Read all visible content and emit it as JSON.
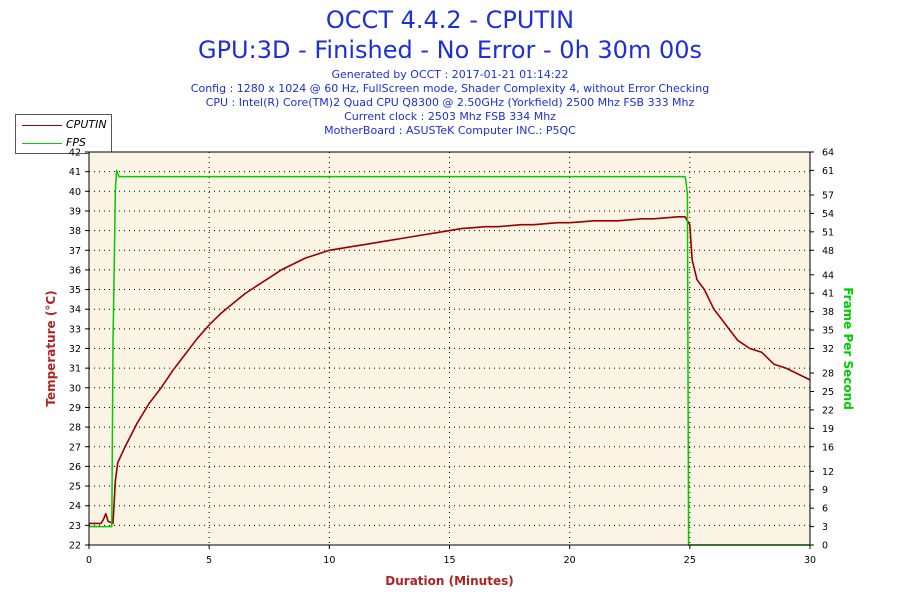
{
  "header": {
    "title": "OCCT 4.4.2 - CPUTIN",
    "subtitle": "GPU:3D - Finished - No Error - 0h 30m 00s",
    "info_lines": [
      "Generated by OCCT : 2017-01-21 01:14:22",
      "Config : 1280 x 1024 @ 60 Hz, FullScreen mode, Shader Complexity 4, without Error Checking",
      "CPU : Intel(R) Core(TM)2 Quad CPU Q8300 @ 2.50GHz (Yorkfield) 2500 Mhz FSB 333 Mhz",
      "Current clock : 2503 Mhz FSB 334 Mhz",
      "MotherBoard : ASUSTeK Computer INC.: P5QC"
    ]
  },
  "legend": {
    "items": [
      {
        "label": "CPUTIN",
        "color": "#990000"
      },
      {
        "label": "FPS",
        "color": "#00cc00"
      }
    ]
  },
  "chart_data": {
    "type": "line",
    "xlabel": "Duration (Minutes)",
    "ylabel": "Temperature (°C)",
    "y2label": "Frame Per Second",
    "xlim": [
      0,
      30
    ],
    "ylim": [
      22,
      42
    ],
    "y2lim": [
      0,
      64
    ],
    "x_ticks": [
      0,
      5,
      10,
      15,
      20,
      25,
      30
    ],
    "y_ticks": [
      22,
      23,
      24,
      25,
      26,
      27,
      28,
      29,
      30,
      31,
      32,
      33,
      34,
      35,
      36,
      37,
      38,
      39,
      40,
      41,
      42
    ],
    "y2_ticks": [
      0,
      3,
      6,
      9,
      12,
      16,
      19,
      22,
      25,
      28,
      32,
      35,
      38,
      41,
      44,
      48,
      51,
      54,
      57,
      61,
      64
    ],
    "grid": true,
    "plot_background": "#fbf3e4",
    "axis_label_colors": {
      "x": "#b22222",
      "y": "#b22222",
      "y2": "#00cc00"
    },
    "series": [
      {
        "name": "CPUTIN",
        "axis": "left",
        "color": "#990000",
        "x": [
          0,
          0.5,
          0.6,
          0.7,
          0.8,
          1.0,
          1.1,
          1.2,
          1.5,
          2.0,
          2.5,
          3.0,
          3.5,
          4.0,
          4.5,
          5.0,
          5.5,
          6.0,
          6.5,
          7.0,
          7.5,
          8.0,
          8.5,
          9.0,
          9.5,
          10.0,
          10.5,
          11.0,
          11.5,
          12.0,
          12.5,
          13.0,
          13.5,
          14.0,
          14.5,
          15.0,
          15.5,
          16.0,
          16.5,
          17.0,
          17.5,
          18.0,
          18.5,
          19.0,
          19.5,
          20.0,
          20.5,
          21.0,
          21.5,
          22.0,
          22.5,
          23.0,
          23.5,
          24.0,
          24.5,
          24.8,
          25.0,
          25.1,
          25.3,
          25.6,
          26.0,
          26.5,
          27.0,
          27.5,
          28.0,
          28.5,
          29.0,
          29.5,
          30.0
        ],
        "values": [
          23.1,
          23.1,
          23.3,
          23.6,
          23.2,
          23.1,
          25.3,
          26.2,
          27.0,
          28.2,
          29.2,
          30.0,
          30.9,
          31.7,
          32.5,
          33.2,
          33.8,
          34.3,
          34.8,
          35.2,
          35.6,
          36.0,
          36.3,
          36.6,
          36.8,
          37.0,
          37.1,
          37.2,
          37.3,
          37.4,
          37.5,
          37.6,
          37.7,
          37.8,
          37.9,
          38.0,
          38.1,
          38.15,
          38.2,
          38.2,
          38.25,
          38.3,
          38.3,
          38.35,
          38.4,
          38.4,
          38.45,
          38.5,
          38.5,
          38.5,
          38.55,
          38.6,
          38.6,
          38.65,
          38.7,
          38.7,
          38.3,
          36.5,
          35.5,
          35.0,
          34.0,
          33.2,
          32.4,
          32.0,
          31.8,
          31.2,
          31.0,
          30.7,
          30.4
        ]
      },
      {
        "name": "FPS",
        "axis": "right",
        "color": "#00cc00",
        "x": [
          0,
          0.95,
          1.0,
          1.05,
          1.1,
          1.15,
          1.25,
          24.8,
          24.85,
          24.9,
          24.95,
          30.0
        ],
        "values": [
          3,
          3,
          33,
          45,
          58,
          61,
          60,
          60,
          59,
          57,
          0,
          0
        ]
      }
    ]
  }
}
